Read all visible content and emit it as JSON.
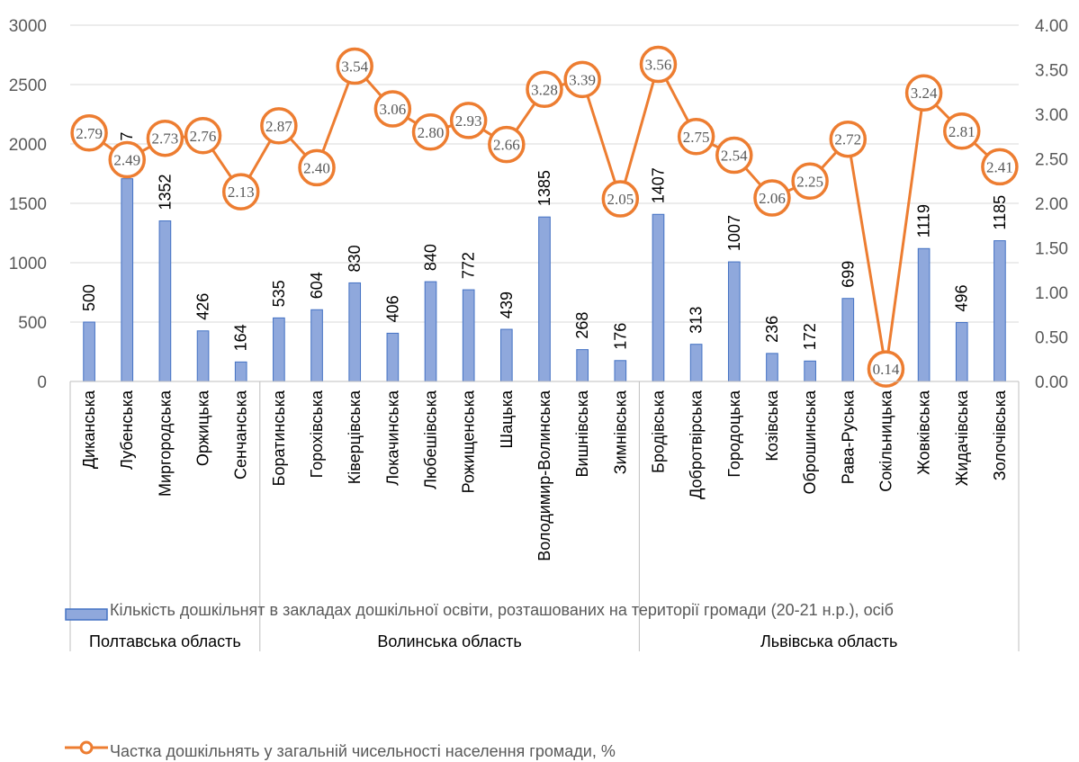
{
  "chart_data": {
    "type": "bar+line",
    "categories": [
      "Диканська",
      "Лубенська",
      "Миргородська",
      "Оржицька",
      "Сенчанська",
      "Боратинська",
      "Горохівська",
      "Ківерцівська",
      "Локачинська",
      "Любешівська",
      "Рожищенська",
      "Шацька",
      "Володимир-Волинська",
      "Вишнівська",
      "Зимнівська",
      "Бродівська",
      "Добротвірська",
      "Городоцька",
      "Козівська",
      "Оброшинська",
      "Рава-Руська",
      "Сокільницька",
      "Жовківська",
      "Жидачівська",
      "Золочівська"
    ],
    "groups": [
      {
        "label": "Полтавська область",
        "count": 5
      },
      {
        "label": "Волинська область",
        "count": 10
      },
      {
        "label": "Львівська область",
        "count": 10
      }
    ],
    "series": [
      {
        "name": "Кількість дошкільнят в закладах дошкільної освіти, розташованих на території громади (20-21 н.р.), осіб",
        "type": "bar",
        "axis": "left",
        "color": "#8FA8DC",
        "values": [
          500,
          1707,
          1352,
          426,
          164,
          535,
          604,
          830,
          406,
          840,
          772,
          439,
          1385,
          268,
          176,
          1407,
          313,
          1007,
          236,
          172,
          699,
          12,
          1119,
          496,
          1185
        ],
        "labels": [
          "500",
          "1707",
          "1352",
          "426",
          "164",
          "535",
          "604",
          "830",
          "406",
          "840",
          "772",
          "439",
          "1385",
          "268",
          "176",
          "1407",
          "313",
          "1007",
          "236",
          "172",
          "699",
          "12",
          "1119",
          "496",
          "1185"
        ]
      },
      {
        "name": "Частка дошкільнять у загальній чисельності населення громади, %",
        "type": "line",
        "axis": "right",
        "color": "#ED7D31",
        "values": [
          2.79,
          2.49,
          2.73,
          2.76,
          2.13,
          2.87,
          2.4,
          3.54,
          3.06,
          2.8,
          2.93,
          2.66,
          3.28,
          3.39,
          2.05,
          3.56,
          2.75,
          2.54,
          2.06,
          2.25,
          2.72,
          0.14,
          3.24,
          2.81,
          2.41
        ],
        "labels": [
          "2.79",
          "2.49",
          "2.73",
          "2.76",
          "2.13",
          "2.87",
          "2.40",
          "3.54",
          "3.06",
          "2.80",
          "2.93",
          "2.66",
          "3.28",
          "3.39",
          "2.05",
          "3.56",
          "2.75",
          "2.54",
          "2.06",
          "2.25",
          "2.72",
          "0.14",
          "3.24",
          "2.81",
          "2.41"
        ]
      }
    ],
    "y_left": {
      "min": 0,
      "max": 3000,
      "ticks": [
        "0",
        "500",
        "1000",
        "1500",
        "2000",
        "2500",
        "3000"
      ]
    },
    "y_right": {
      "min": 0,
      "max": 4,
      "ticks": [
        "0.00",
        "0.50",
        "1.00",
        "1.50",
        "2.00",
        "2.50",
        "3.00",
        "3.50",
        "4.00"
      ]
    },
    "grid": true,
    "legend_position": "bottom"
  }
}
